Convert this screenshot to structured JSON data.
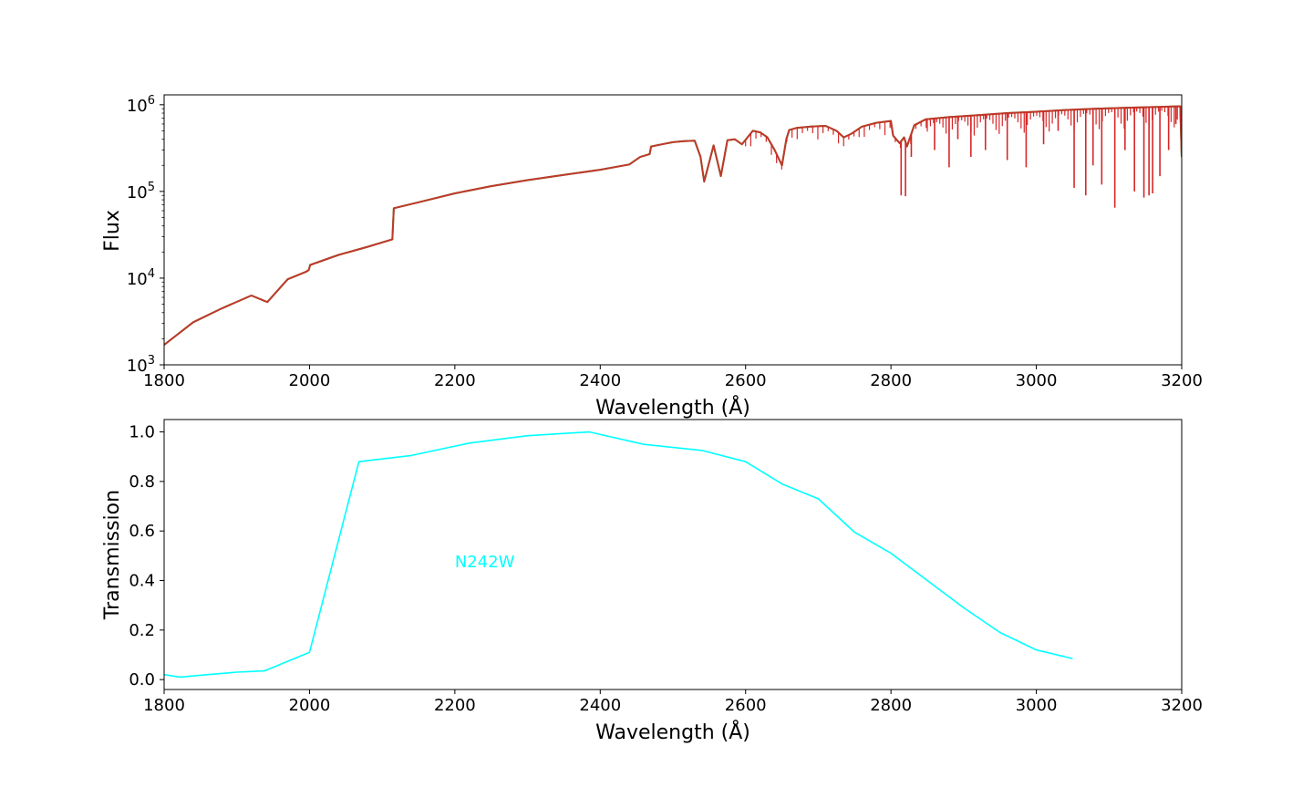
{
  "chart_data": [
    {
      "type": "line",
      "xlabel": "Wavelength (Å)",
      "ylabel": "Flux",
      "xlim": [
        1800,
        3200
      ],
      "ylim": [
        1000,
        1300000
      ],
      "yscale": "log",
      "grid": false,
      "xticks": [
        1800,
        2000,
        2200,
        2400,
        2600,
        2800,
        3000,
        3200
      ],
      "xtick_labels": [
        "1800",
        "2000",
        "2200",
        "2400",
        "2600",
        "2800",
        "3000",
        "3200"
      ],
      "yticks": [
        1000,
        10000,
        100000,
        1000000
      ],
      "ytick_bases": [
        "10",
        "10",
        "10",
        "10"
      ],
      "ytick_exponents": [
        "3",
        "4",
        "5",
        "6"
      ],
      "colors": {
        "series_a": "#2ca02c",
        "series_b": "#d62728",
        "overlap": "#c0392b"
      },
      "series": [
        {
          "x": [
            1800,
            1840,
            1880,
            1920,
            1942,
            1970,
            1995,
            1999,
            2001,
            2040,
            2080,
            2114,
            2116,
            2150,
            2200,
            2250,
            2300,
            2350,
            2400,
            2440,
            2455,
            2462,
            2468,
            2470,
            2485,
            2500,
            2515,
            2530,
            2538,
            2543,
            2556,
            2566,
            2575,
            2585,
            2595,
            2610,
            2620,
            2630,
            2640,
            2650,
            2656,
            2660,
            2670,
            2690,
            2710,
            2725,
            2735,
            2745,
            2760,
            2780,
            2800,
            2803,
            2812,
            2818,
            2822,
            2832,
            2848,
            2880,
            2920,
            2960,
            3000,
            3040,
            3080,
            3120,
            3160,
            3198,
            3200
          ],
          "y": [
            1700,
            3100,
            4500,
            6300,
            5300,
            9700,
            11800,
            12400,
            14200,
            18500,
            23000,
            28000,
            64000,
            75000,
            95000,
            115000,
            135000,
            155000,
            178000,
            205000,
            250000,
            260000,
            270000,
            330000,
            350000,
            370000,
            380000,
            385000,
            250000,
            130000,
            340000,
            150000,
            390000,
            400000,
            350000,
            500000,
            480000,
            420000,
            300000,
            200000,
            400000,
            510000,
            540000,
            560000,
            570000,
            500000,
            420000,
            460000,
            560000,
            620000,
            650000,
            440000,
            360000,
            420000,
            330000,
            580000,
            680000,
            720000,
            760000,
            800000,
            830000,
            870000,
            900000,
            920000,
            940000,
            960000,
            250000
          ]
        }
      ],
      "absorption_lines": [
        {
          "x": 2814,
          "y": 90000
        },
        {
          "x": 2820,
          "y": 88000
        },
        {
          "x": 2828,
          "y": 250000
        },
        {
          "x": 2860,
          "y": 300000
        },
        {
          "x": 2880,
          "y": 190000
        },
        {
          "x": 2892,
          "y": 400000
        },
        {
          "x": 2910,
          "y": 250000
        },
        {
          "x": 2930,
          "y": 300000
        },
        {
          "x": 2960,
          "y": 230000
        },
        {
          "x": 2986,
          "y": 190000
        },
        {
          "x": 3010,
          "y": 350000
        },
        {
          "x": 3030,
          "y": 500000
        },
        {
          "x": 3052,
          "y": 110000
        },
        {
          "x": 3068,
          "y": 90000
        },
        {
          "x": 3078,
          "y": 200000
        },
        {
          "x": 3090,
          "y": 120000
        },
        {
          "x": 3108,
          "y": 65000
        },
        {
          "x": 3122,
          "y": 300000
        },
        {
          "x": 3135,
          "y": 100000
        },
        {
          "x": 3148,
          "y": 85000
        },
        {
          "x": 3155,
          "y": 90000
        },
        {
          "x": 3160,
          "y": 95000
        },
        {
          "x": 3170,
          "y": 150000
        },
        {
          "x": 3182,
          "y": 300000
        },
        {
          "x": 3192,
          "y": 600000
        }
      ]
    },
    {
      "type": "line",
      "xlabel": "Wavelength (Å)",
      "ylabel": "Transmission",
      "xlim": [
        1800,
        3200
      ],
      "ylim": [
        -0.04,
        1.05
      ],
      "grid": false,
      "xticks": [
        1800,
        2000,
        2200,
        2400,
        2600,
        2800,
        3000,
        3200
      ],
      "xtick_labels": [
        "1800",
        "2000",
        "2200",
        "2400",
        "2600",
        "2800",
        "3000",
        "3200"
      ],
      "yticks": [
        0.0,
        0.2,
        0.4,
        0.6,
        0.8,
        1.0
      ],
      "ytick_labels": [
        "0.0",
        "0.2",
        "0.4",
        "0.6",
        "0.8",
        "1.0"
      ],
      "annotation": {
        "text": "N242W",
        "x": 2200,
        "y": 0.48,
        "color": "#00ffff"
      },
      "series": [
        {
          "color": "#00ffff",
          "x": [
            1800,
            1822,
            1860,
            1900,
            1938,
            2000,
            2068,
            2140,
            2220,
            2300,
            2385,
            2460,
            2540,
            2600,
            2650,
            2700,
            2750,
            2800,
            2850,
            2900,
            2950,
            3000,
            3050
          ],
          "y": [
            0.02,
            0.01,
            0.02,
            0.03,
            0.035,
            0.11,
            0.88,
            0.905,
            0.955,
            0.985,
            1.0,
            0.95,
            0.925,
            0.88,
            0.79,
            0.73,
            0.595,
            0.51,
            0.4,
            0.29,
            0.19,
            0.12,
            0.085
          ]
        }
      ]
    }
  ]
}
